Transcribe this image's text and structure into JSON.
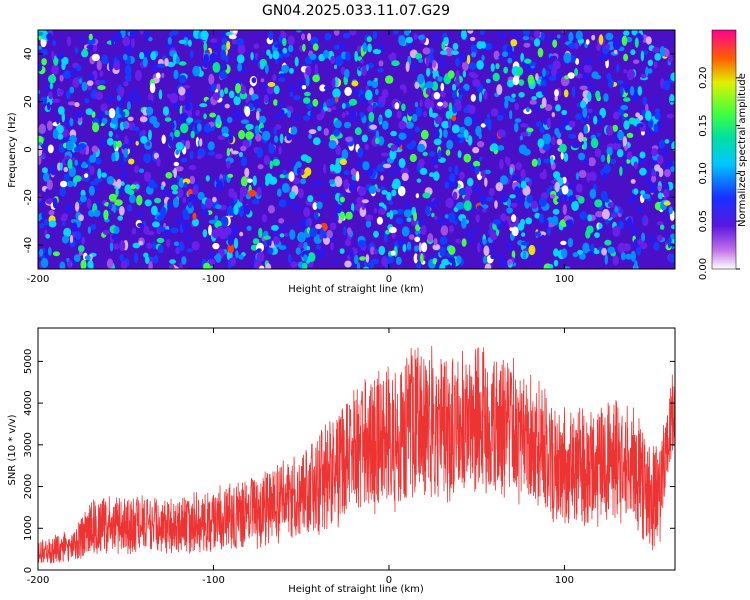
{
  "title": "GN04.2025.033.11.07.G29",
  "chart_data": [
    {
      "type": "heatmap",
      "xlabel": "Height of straight line (km)",
      "ylabel": "Frequency (Hz)",
      "xlim": [
        -200,
        163
      ],
      "ylim": [
        -50,
        50
      ],
      "xticks": [
        "-200",
        "-100",
        "0",
        "100"
      ],
      "yticks": [
        "-40",
        "-20",
        "0",
        "20",
        "40"
      ],
      "colorbar": {
        "label": "Normalized spectral amplitude",
        "range": [
          0,
          0.25
        ],
        "ticks": [
          "0.00",
          "0.05",
          "0.10",
          "0.15",
          "0.20"
        ]
      },
      "grid": false
    },
    {
      "type": "line",
      "xlabel": "Height of straight line (km)",
      "ylabel": "SNR (10 * v/v)",
      "xlim": [
        -200,
        163
      ],
      "ylim": [
        0,
        5800
      ],
      "xticks": [
        "-200",
        "-100",
        "0",
        "100"
      ],
      "yticks": [
        "0",
        "1000",
        "2000",
        "3000",
        "4000",
        "5000"
      ],
      "series_color": "#ee3333",
      "envelope_x": [
        -200,
        -190,
        -180,
        -170,
        -160,
        -150,
        -140,
        -130,
        -120,
        -110,
        -100,
        -90,
        -80,
        -70,
        -60,
        -50,
        -40,
        -30,
        -20,
        -10,
        0,
        10,
        20,
        30,
        40,
        50,
        60,
        70,
        80,
        90,
        100,
        110,
        120,
        130,
        140,
        145,
        150,
        155,
        160,
        163
      ],
      "envelope_mean": [
        400,
        500,
        600,
        1050,
        1100,
        1050,
        1100,
        1100,
        1050,
        1150,
        1200,
        1300,
        1350,
        1500,
        1650,
        1800,
        2100,
        2400,
        2800,
        3000,
        3100,
        3400,
        3500,
        3400,
        3450,
        3550,
        3550,
        3400,
        3100,
        2800,
        2500,
        2450,
        2500,
        2600,
        2450,
        2100,
        1700,
        1900,
        3500,
        3900
      ],
      "envelope_amp": [
        300,
        350,
        400,
        700,
        700,
        700,
        700,
        700,
        700,
        750,
        800,
        850,
        900,
        950,
        1050,
        1150,
        1300,
        1500,
        1600,
        1700,
        1800,
        1900,
        1950,
        1900,
        1850,
        1800,
        1800,
        1750,
        1700,
        1600,
        1500,
        1500,
        1500,
        1500,
        1450,
        1400,
        1300,
        1200,
        1000,
        1000
      ]
    }
  ]
}
